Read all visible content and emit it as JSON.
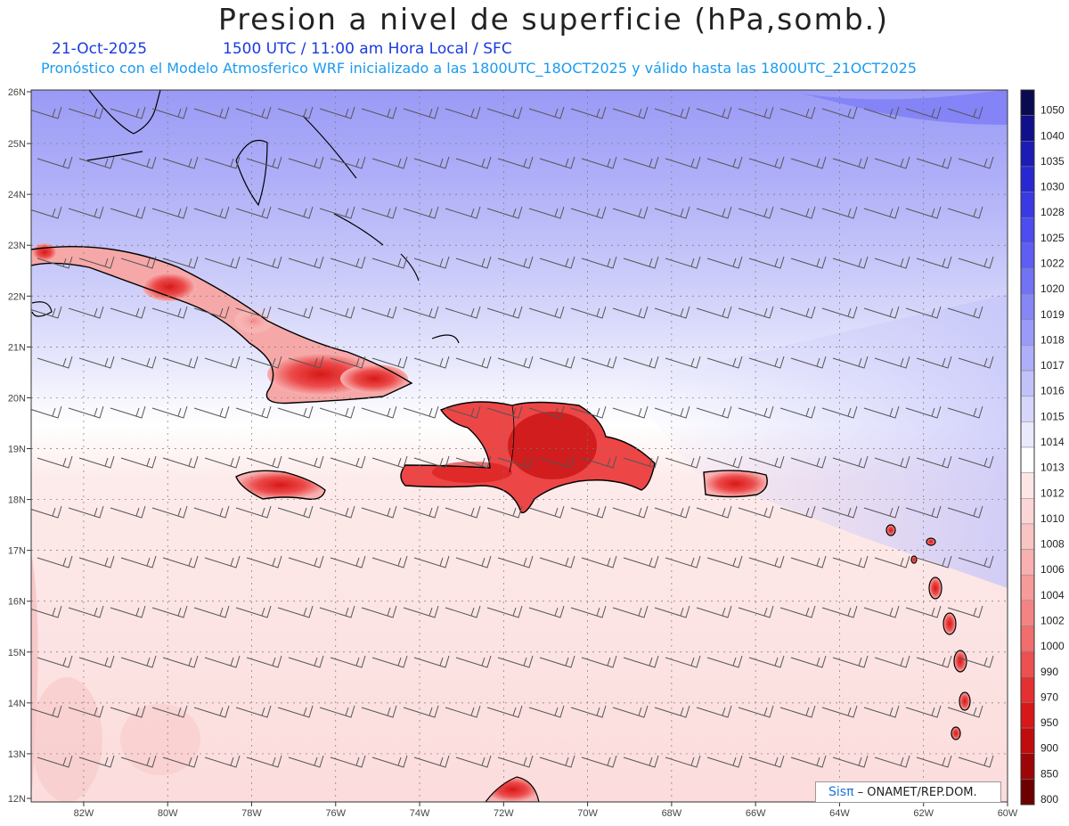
{
  "header": {
    "title": "Presion a nivel de superficie (hPa,somb.)",
    "date": "21-Oct-2025",
    "time": "1500 UTC / 11:00 am Hora Local / SFC",
    "note": "Pronóstico con el Modelo Atmosferico WRF inicializado a las 1800UTC_18OCT2025 y válido hasta las  1800UTC_21OCT2025"
  },
  "axes": {
    "lat_labels": [
      "26N",
      "25N",
      "24N",
      "23N",
      "22N",
      "21N",
      "20N",
      "19N",
      "18N",
      "17N",
      "16N",
      "15N",
      "14N",
      "13N",
      "12N"
    ],
    "lon_labels": [
      "82W",
      "80W",
      "78W",
      "76W",
      "74W",
      "72W",
      "70W",
      "68W",
      "66W",
      "64W",
      "62W",
      "60W"
    ]
  },
  "legend": {
    "labels": [
      "1050",
      "1040",
      "1035",
      "1030",
      "1028",
      "1025",
      "1022",
      "1020",
      "1019",
      "1018",
      "1017",
      "1016",
      "1015",
      "1014",
      "1013",
      "1012",
      "1010",
      "1008",
      "1006",
      "1004",
      "1002",
      "1000",
      "990",
      "970",
      "950",
      "900",
      "850",
      "800"
    ],
    "colors": [
      "#0a0a50",
      "#10108a",
      "#1c1cb4",
      "#2828d2",
      "#3a3ae4",
      "#4c4cf0",
      "#5e5ef2",
      "#7272f4",
      "#8686f6",
      "#9a9af8",
      "#aeaefa",
      "#c2c2fb",
      "#d6d6fc",
      "#eaeafd",
      "#ffffff",
      "#fde6e6",
      "#fcd6d6",
      "#fac4c4",
      "#f8b0b0",
      "#f69a9a",
      "#f48484",
      "#f06e6e",
      "#ec5050",
      "#e43030",
      "#d81818",
      "#c00c0c",
      "#9c0606",
      "#6c0000"
    ]
  },
  "credit": {
    "brand": "Sisπ",
    "org": " – ONAMET/REP.DOM."
  },
  "icons": [
    "wind-barb-icon"
  ]
}
